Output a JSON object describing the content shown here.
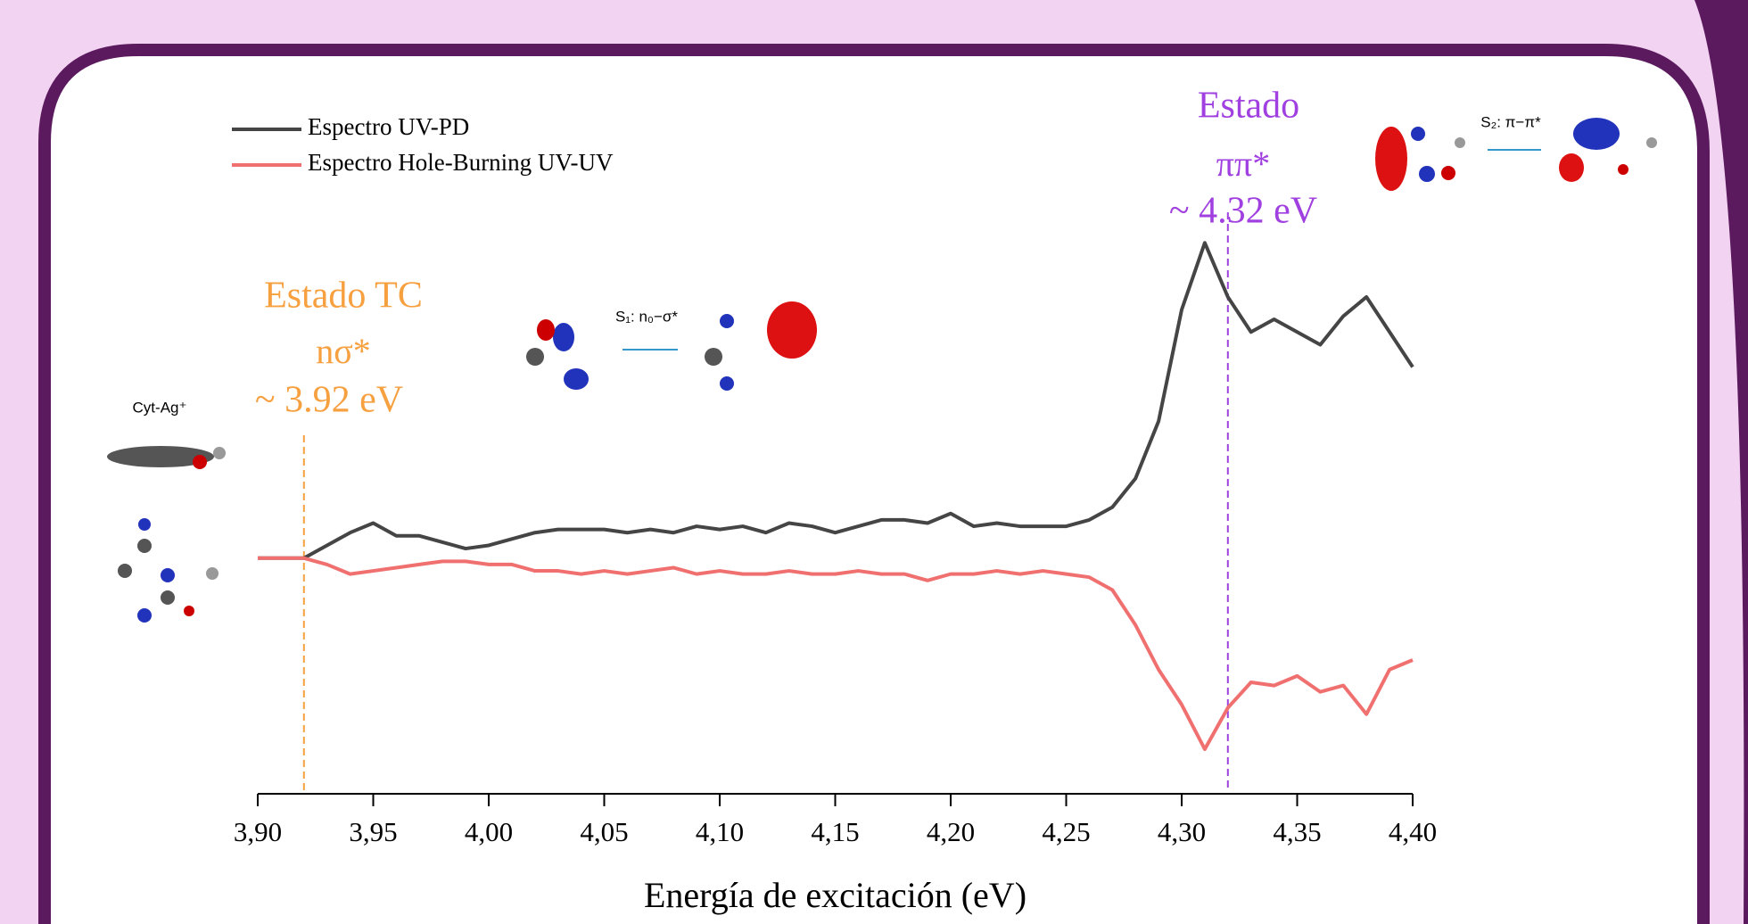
{
  "chart_data": {
    "type": "line",
    "xlabel": "Energía de excitación (eV)",
    "x": [
      3.9,
      3.91,
      3.92,
      3.93,
      3.94,
      3.95,
      3.96,
      3.97,
      3.98,
      3.99,
      4.0,
      4.01,
      4.02,
      4.03,
      4.04,
      4.05,
      4.06,
      4.07,
      4.08,
      4.09,
      4.1,
      4.11,
      4.12,
      4.13,
      4.14,
      4.15,
      4.16,
      4.17,
      4.18,
      4.19,
      4.2,
      4.21,
      4.22,
      4.23,
      4.24,
      4.25,
      4.26,
      4.27,
      4.28,
      4.29,
      4.3,
      4.31,
      4.32,
      4.33,
      4.34,
      4.35,
      4.36,
      4.37,
      4.38,
      4.39,
      4.4
    ],
    "series": [
      {
        "name": "Espectro UV-PD",
        "color": "#454545",
        "values": [
          0,
          0,
          0,
          0.04,
          0.08,
          0.11,
          0.07,
          0.07,
          0.05,
          0.03,
          0.04,
          0.06,
          0.08,
          0.09,
          0.09,
          0.09,
          0.08,
          0.09,
          0.08,
          0.1,
          0.09,
          0.1,
          0.08,
          0.11,
          0.1,
          0.08,
          0.1,
          0.12,
          0.12,
          0.11,
          0.14,
          0.1,
          0.11,
          0.1,
          0.1,
          0.1,
          0.12,
          0.16,
          0.25,
          0.43,
          0.78,
          0.99,
          0.82,
          0.71,
          0.75,
          0.71,
          0.67,
          0.76,
          0.82,
          0.71,
          0.6
        ]
      },
      {
        "name": "Espectro Hole-Burning UV-UV",
        "color": "#f07070",
        "values": [
          0,
          0,
          0,
          -0.02,
          -0.05,
          -0.04,
          -0.03,
          -0.02,
          -0.01,
          -0.01,
          -0.02,
          -0.02,
          -0.04,
          -0.04,
          -0.05,
          -0.04,
          -0.05,
          -0.04,
          -0.03,
          -0.05,
          -0.04,
          -0.05,
          -0.05,
          -0.04,
          -0.05,
          -0.05,
          -0.04,
          -0.05,
          -0.05,
          -0.07,
          -0.05,
          -0.05,
          -0.04,
          -0.05,
          -0.04,
          -0.05,
          -0.06,
          -0.1,
          -0.21,
          -0.35,
          -0.46,
          -0.6,
          -0.47,
          -0.39,
          -0.4,
          -0.37,
          -0.42,
          -0.4,
          -0.49,
          -0.35,
          -0.32
        ]
      }
    ],
    "xlim": [
      3.9,
      4.4
    ],
    "ylim": [
      -0.74,
      1.1
    ],
    "xticks": [
      {
        "value": 3.9,
        "label": "3,90"
      },
      {
        "value": 3.95,
        "label": "3,95"
      },
      {
        "value": 4.0,
        "label": "4,00"
      },
      {
        "value": 4.05,
        "label": "4,05"
      },
      {
        "value": 4.1,
        "label": "4,10"
      },
      {
        "value": 4.15,
        "label": "4,15"
      },
      {
        "value": 4.2,
        "label": "4,20"
      },
      {
        "value": 4.25,
        "label": "4,25"
      },
      {
        "value": 4.3,
        "label": "4,30"
      },
      {
        "value": 4.35,
        "label": "4,35"
      },
      {
        "value": 4.4,
        "label": "4,40"
      }
    ],
    "legend": "upper left",
    "markers": [
      {
        "x": 3.92,
        "color": "#f7a040"
      },
      {
        "x": 4.32,
        "color": "#a040e0"
      }
    ],
    "annotations": [
      {
        "text": "Estado  TC",
        "color": "#f7a040"
      },
      {
        "text": "nσ*",
        "color": "#f7a040"
      },
      {
        "text": "~ 3.92 eV",
        "color": "#f7a040"
      },
      {
        "text": "Estado",
        "color": "#a040e0"
      },
      {
        "text": "ππ*",
        "color": "#a040e0"
      },
      {
        "text": "~ 4.32 eV",
        "color": "#a040e0"
      },
      {
        "text": "Cyt-Ag⁺",
        "color": "#000000"
      },
      {
        "text": "S₁: n₀−σ*",
        "color": "#000000"
      },
      {
        "text": "S₂: π−π*",
        "color": "#000000"
      }
    ]
  }
}
